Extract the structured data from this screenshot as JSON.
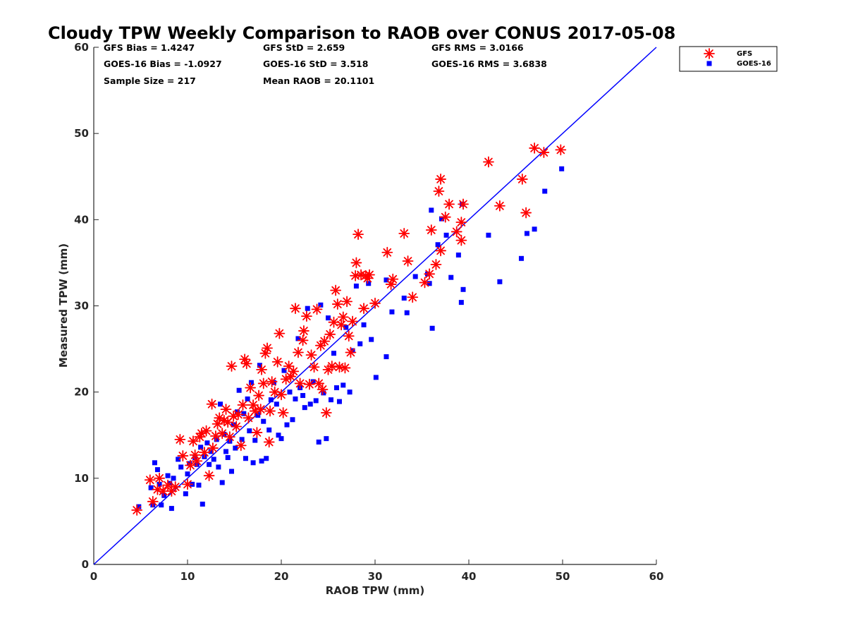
{
  "chart_data": {
    "type": "scatter",
    "title": "Cloudy TPW Weekly Comparison to RAOB over CONUS 2017-05-08",
    "xlabel": "RAOB TPW (mm)",
    "ylabel": "Measured TPW (mm)",
    "xlim": [
      0,
      60
    ],
    "ylim": [
      0,
      60
    ],
    "xticks": [
      "0",
      "10",
      "20",
      "30",
      "40",
      "50",
      "60"
    ],
    "yticks": [
      "0",
      "10",
      "20",
      "30",
      "40",
      "50",
      "60"
    ],
    "grid": false,
    "legend_position": "outside-top-right",
    "reference_line": {
      "from": [
        0,
        0
      ],
      "to": [
        60,
        60
      ],
      "color": "#0000ff"
    },
    "stats": [
      [
        "GFS Bias = 1.4247",
        "GFS StD = 2.659",
        "GFS RMS = 3.0166"
      ],
      [
        "GOES-16 Bias = -1.0927",
        "GOES-16 StD = 3.518",
        "GOES-16 RMS = 3.6838"
      ],
      [
        "Sample Size = 217",
        "Mean RAOB = 20.1101",
        ""
      ]
    ],
    "series": [
      {
        "name": "GFS",
        "marker": "asterisk",
        "color": "#ff0000",
        "points": [
          [
            4.6,
            6.3
          ],
          [
            6,
            9.8
          ],
          [
            6.3,
            7.3
          ],
          [
            6.8,
            8.7
          ],
          [
            7,
            10
          ],
          [
            7.4,
            8.5
          ],
          [
            7.9,
            9.2
          ],
          [
            8.3,
            8.5
          ],
          [
            8.7,
            9
          ],
          [
            9.2,
            14.5
          ],
          [
            9.5,
            12.6
          ],
          [
            10,
            9.3
          ],
          [
            10.3,
            11.5
          ],
          [
            10.6,
            14.3
          ],
          [
            10.8,
            12.7
          ],
          [
            11,
            12
          ],
          [
            11.3,
            14.8
          ],
          [
            11.5,
            15.2
          ],
          [
            11.8,
            13
          ],
          [
            12,
            15.5
          ],
          [
            12.3,
            10.3
          ],
          [
            12.6,
            18.6
          ],
          [
            12.7,
            13.5
          ],
          [
            13,
            14.9
          ],
          [
            13.2,
            16.3
          ],
          [
            13.4,
            17
          ],
          [
            13.7,
            15.2
          ],
          [
            13.9,
            16.7
          ],
          [
            14.1,
            18
          ],
          [
            14.3,
            16.5
          ],
          [
            14.5,
            14.8
          ],
          [
            14.7,
            23
          ],
          [
            14.9,
            17.2
          ],
          [
            15.2,
            16
          ],
          [
            15.4,
            17.4
          ],
          [
            15.7,
            13.8
          ],
          [
            15.9,
            18.5
          ],
          [
            16.1,
            23.8
          ],
          [
            16.3,
            23.3
          ],
          [
            16.5,
            17
          ],
          [
            16.7,
            20.5
          ],
          [
            17,
            18.5
          ],
          [
            17.2,
            17.8
          ],
          [
            17.4,
            15.3
          ],
          [
            17.6,
            19.6
          ],
          [
            17.8,
            18
          ],
          [
            17.9,
            22.6
          ],
          [
            18.1,
            21
          ],
          [
            18.3,
            24.5
          ],
          [
            18.5,
            25.1
          ],
          [
            18.7,
            14.2
          ],
          [
            18.8,
            17.8
          ],
          [
            19,
            21.2
          ],
          [
            19.3,
            20
          ],
          [
            19.6,
            23.5
          ],
          [
            19.8,
            26.8
          ],
          [
            20,
            19.7
          ],
          [
            20.2,
            17.6
          ],
          [
            20.5,
            21.5
          ],
          [
            20.8,
            23
          ],
          [
            21,
            21.8
          ],
          [
            21.3,
            22.4
          ],
          [
            21.5,
            29.7
          ],
          [
            21.8,
            24.6
          ],
          [
            22,
            21
          ],
          [
            22.3,
            26
          ],
          [
            22.4,
            27.1
          ],
          [
            22.7,
            28.8
          ],
          [
            23,
            20.9
          ],
          [
            23.2,
            24.3
          ],
          [
            23.5,
            22.9
          ],
          [
            23.8,
            29.6
          ],
          [
            24,
            21
          ],
          [
            24.2,
            25.4
          ],
          [
            24.4,
            20.3
          ],
          [
            24.6,
            25.9
          ],
          [
            24.8,
            17.6
          ],
          [
            25,
            22.6
          ],
          [
            25.2,
            26.7
          ],
          [
            25.4,
            23
          ],
          [
            25.6,
            28.1
          ],
          [
            25.8,
            31.8
          ],
          [
            26,
            30.2
          ],
          [
            26.2,
            22.9
          ],
          [
            26.4,
            27.8
          ],
          [
            26.6,
            28.7
          ],
          [
            26.8,
            22.8
          ],
          [
            27,
            30.5
          ],
          [
            27.2,
            26.5
          ],
          [
            27.4,
            24.6
          ],
          [
            27.6,
            28.2
          ],
          [
            27.9,
            33.5
          ],
          [
            28,
            35
          ],
          [
            28.2,
            38.3
          ],
          [
            28.5,
            33.6
          ],
          [
            28.8,
            29.7
          ],
          [
            29,
            33.5
          ],
          [
            29.2,
            33.2
          ],
          [
            29.4,
            33.6
          ],
          [
            30,
            30.3
          ],
          [
            31.3,
            36.2
          ],
          [
            31.9,
            33.1
          ],
          [
            31.7,
            32.5
          ],
          [
            33.1,
            38.4
          ],
          [
            33.5,
            35.2
          ],
          [
            34,
            31
          ],
          [
            35.3,
            32.7
          ],
          [
            35.8,
            33.7
          ],
          [
            36,
            38.8
          ],
          [
            36.5,
            34.8
          ],
          [
            36.8,
            43.3
          ],
          [
            37,
            44.7
          ],
          [
            37,
            36.4
          ],
          [
            37.5,
            40.3
          ],
          [
            37.9,
            41.8
          ],
          [
            38.7,
            38.6
          ],
          [
            39.2,
            37.6
          ],
          [
            39.2,
            39.7
          ],
          [
            39.4,
            41.8
          ],
          [
            42.1,
            46.7
          ],
          [
            43.3,
            41.6
          ],
          [
            45.7,
            44.7
          ],
          [
            46.1,
            40.8
          ],
          [
            47,
            48.3
          ],
          [
            48,
            47.8
          ],
          [
            49.8,
            48.1
          ]
        ]
      },
      {
        "name": "GOES-16",
        "marker": "square",
        "color": "#0000ff",
        "points": [
          [
            4.8,
            6.7
          ],
          [
            6.1,
            8.9
          ],
          [
            6.3,
            6.9
          ],
          [
            6.5,
            11.8
          ],
          [
            6.8,
            11
          ],
          [
            7,
            9.3
          ],
          [
            7.2,
            6.9
          ],
          [
            7.5,
            8
          ],
          [
            7.9,
            10.3
          ],
          [
            8.1,
            9.4
          ],
          [
            8.3,
            6.5
          ],
          [
            8.5,
            10
          ],
          [
            9,
            12.2
          ],
          [
            9.3,
            11.3
          ],
          [
            9.8,
            8.2
          ],
          [
            10,
            10.5
          ],
          [
            10.2,
            11.7
          ],
          [
            10.5,
            9.3
          ],
          [
            10.8,
            12.4
          ],
          [
            11,
            11.6
          ],
          [
            11.2,
            9.2
          ],
          [
            11.4,
            13.6
          ],
          [
            11.6,
            7
          ],
          [
            11.8,
            12.5
          ],
          [
            12.1,
            14.1
          ],
          [
            12.3,
            11.6
          ],
          [
            12.5,
            13.1
          ],
          [
            12.8,
            12.2
          ],
          [
            13.1,
            14.5
          ],
          [
            13.3,
            11.3
          ],
          [
            13.5,
            18.6
          ],
          [
            13.7,
            9.5
          ],
          [
            13.9,
            15.1
          ],
          [
            14.1,
            13.1
          ],
          [
            14.3,
            12.4
          ],
          [
            14.5,
            14.3
          ],
          [
            14.7,
            10.8
          ],
          [
            14.9,
            16.2
          ],
          [
            15.1,
            13.5
          ],
          [
            15.3,
            17.7
          ],
          [
            15.5,
            20.2
          ],
          [
            15.8,
            14.5
          ],
          [
            16,
            17.5
          ],
          [
            16.2,
            12.3
          ],
          [
            16.4,
            19.2
          ],
          [
            16.6,
            15.5
          ],
          [
            16.8,
            21.1
          ],
          [
            17,
            11.8
          ],
          [
            17.2,
            14.4
          ],
          [
            17.5,
            17.3
          ],
          [
            17.7,
            23.1
          ],
          [
            17.9,
            12
          ],
          [
            18.1,
            16.6
          ],
          [
            18.4,
            12.3
          ],
          [
            18.7,
            15.6
          ],
          [
            18.9,
            19.1
          ],
          [
            19.2,
            21.1
          ],
          [
            19.5,
            18.6
          ],
          [
            19.7,
            15
          ],
          [
            20,
            14.6
          ],
          [
            20.3,
            22.5
          ],
          [
            20.6,
            16.2
          ],
          [
            20.9,
            20
          ],
          [
            21.2,
            16.8
          ],
          [
            21.5,
            19.2
          ],
          [
            21.8,
            26.2
          ],
          [
            22,
            20.5
          ],
          [
            22.3,
            19.6
          ],
          [
            22.5,
            18.2
          ],
          [
            22.8,
            29.7
          ],
          [
            23.1,
            18.6
          ],
          [
            23.4,
            21.2
          ],
          [
            23.7,
            19
          ],
          [
            24,
            14.2
          ],
          [
            24.2,
            30.1
          ],
          [
            24.5,
            19.9
          ],
          [
            24.8,
            14.6
          ],
          [
            25,
            28.6
          ],
          [
            25.3,
            19.1
          ],
          [
            25.6,
            24.5
          ],
          [
            25.9,
            20.5
          ],
          [
            26.2,
            18.9
          ],
          [
            26.6,
            20.8
          ],
          [
            26.9,
            27.5
          ],
          [
            27.3,
            20
          ],
          [
            27.6,
            24.8
          ],
          [
            28,
            32.3
          ],
          [
            28.4,
            25.6
          ],
          [
            28.8,
            27.8
          ],
          [
            29.3,
            32.6
          ],
          [
            29.6,
            26.1
          ],
          [
            30.1,
            21.7
          ],
          [
            31.2,
            33
          ],
          [
            31.2,
            24.1
          ],
          [
            31.8,
            29.3
          ],
          [
            33.1,
            30.9
          ],
          [
            33.4,
            29.2
          ],
          [
            34.3,
            33.4
          ],
          [
            35.6,
            33.7
          ],
          [
            35.8,
            32.6
          ],
          [
            36,
            41.1
          ],
          [
            36.1,
            27.4
          ],
          [
            36.7,
            37.1
          ],
          [
            37.1,
            40.1
          ],
          [
            37.6,
            38.2
          ],
          [
            38.1,
            33.3
          ],
          [
            38.9,
            35.9
          ],
          [
            39.2,
            30.4
          ],
          [
            39.3,
            41.8
          ],
          [
            39.4,
            31.9
          ],
          [
            42.1,
            38.2
          ],
          [
            43.3,
            32.8
          ],
          [
            45.6,
            35.5
          ],
          [
            46.2,
            38.4
          ],
          [
            47,
            38.9
          ],
          [
            48.1,
            43.3
          ],
          [
            49.9,
            45.9
          ]
        ]
      }
    ]
  }
}
